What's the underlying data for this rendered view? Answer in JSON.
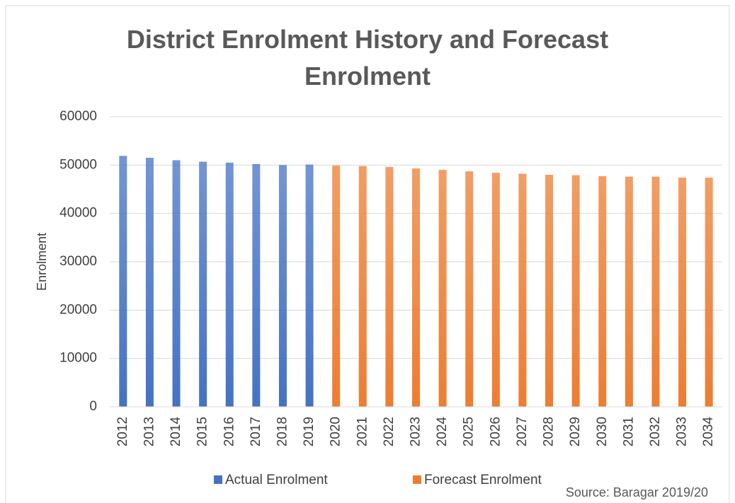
{
  "chart_data": {
    "type": "bar",
    "title": "District Enrolment History and Forecast Enrolment",
    "y_label": "Enrolment",
    "annotation": "Source: Baragar 2019/20",
    "categories": [
      "2012",
      "2013",
      "2014",
      "2015",
      "2016",
      "2017",
      "2018",
      "2019",
      "2020",
      "2021",
      "2022",
      "2023",
      "2024",
      "2025",
      "2026",
      "2027",
      "2028",
      "2029",
      "2030",
      "2031",
      "2032",
      "2033",
      "2034"
    ],
    "series": [
      {
        "name": "Actual Enrolment",
        "color": "#4472c4",
        "values": [
          51900,
          51500,
          51000,
          50700,
          50500,
          50200,
          50000,
          50100,
          null,
          null,
          null,
          null,
          null,
          null,
          null,
          null,
          null,
          null,
          null,
          null,
          null,
          null,
          null
        ]
      },
      {
        "name": "Forecast Enrolment",
        "color": "#ed7d31",
        "values": [
          null,
          null,
          null,
          null,
          null,
          null,
          null,
          null,
          49900,
          49800,
          49600,
          49300,
          49000,
          48700,
          48400,
          48200,
          48000,
          47900,
          47700,
          47600,
          47600,
          47400,
          47400
        ]
      }
    ],
    "ylim": [
      0,
      60000
    ],
    "yticks": [
      0,
      10000,
      20000,
      30000,
      40000,
      50000,
      60000
    ],
    "grid": true,
    "legend": "bottom"
  }
}
